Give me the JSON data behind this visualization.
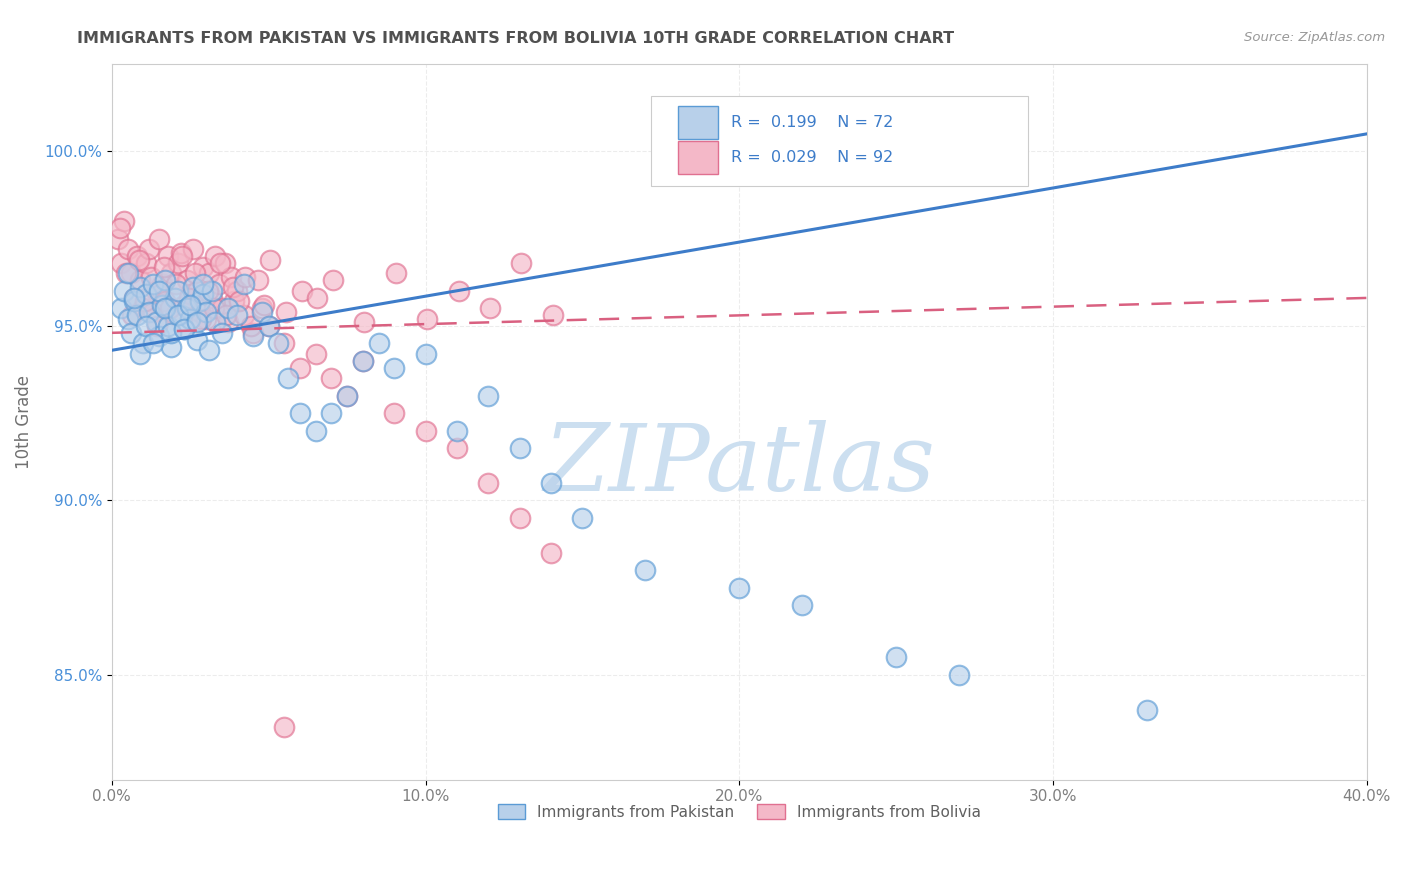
{
  "title": "IMMIGRANTS FROM PAKISTAN VS IMMIGRANTS FROM BOLIVIA 10TH GRADE CORRELATION CHART",
  "source_text": "Source: ZipAtlas.com",
  "ylabel": "10th Grade",
  "xlim": [
    0.0,
    40.0
  ],
  "ylim": [
    82.0,
    102.5
  ],
  "x_tick_labels": [
    "0.0%",
    "10.0%",
    "20.0%",
    "30.0%",
    "40.0%"
  ],
  "x_tick_values": [
    0,
    10,
    20,
    30,
    40
  ],
  "y_tick_labels": [
    "85.0%",
    "90.0%",
    "95.0%",
    "100.0%"
  ],
  "y_tick_values": [
    85,
    90,
    95,
    100
  ],
  "blue_fill_color": "#b8d0ea",
  "blue_edge_color": "#5b9bd5",
  "pink_fill_color": "#f4b8c8",
  "pink_edge_color": "#e07090",
  "blue_line_color": "#3d7cc9",
  "pink_line_color": "#d96080",
  "legend_blue_color": "#b8d0ea",
  "legend_pink_color": "#f4b8c8",
  "watermark": "ZIPatlas",
  "watermark_color": "#ccdff0",
  "bg_color": "#ffffff",
  "grid_color": "#e8e8e8",
  "title_color": "#505050",
  "axis_label_color": "#707070",
  "tick_color_x": "#808080",
  "tick_color_y": "#4a90d9",
  "blue_trend_x0": 0.0,
  "blue_trend_y0": 94.3,
  "blue_trend_x1": 40.0,
  "blue_trend_y1": 100.5,
  "pink_trend_x0": 0.0,
  "pink_trend_y0": 94.8,
  "pink_trend_x1": 40.0,
  "pink_trend_y1": 95.8,
  "blue_scatter_x": [
    0.3,
    0.4,
    0.5,
    0.6,
    0.7,
    0.8,
    0.9,
    1.0,
    1.1,
    1.2,
    1.3,
    1.4,
    1.5,
    1.6,
    1.7,
    1.8,
    1.9,
    2.0,
    2.1,
    2.2,
    2.3,
    2.4,
    2.5,
    2.6,
    2.7,
    2.8,
    2.9,
    3.0,
    3.1,
    3.2,
    3.3,
    3.5,
    3.7,
    4.0,
    4.2,
    4.5,
    4.8,
    5.0,
    5.3,
    5.6,
    6.0,
    6.5,
    7.0,
    7.5,
    8.0,
    8.5,
    9.0,
    10.0,
    11.0,
    12.0,
    13.0,
    14.0,
    15.0,
    17.0,
    20.0,
    22.0,
    25.0,
    27.0,
    33.0,
    0.5,
    0.7,
    0.9,
    1.1,
    1.3,
    1.5,
    1.7,
    1.9,
    2.1,
    2.3,
    2.5,
    2.7,
    2.9
  ],
  "blue_scatter_y": [
    95.5,
    96.0,
    95.2,
    94.8,
    95.7,
    95.3,
    96.1,
    94.5,
    95.9,
    95.4,
    96.2,
    95.1,
    94.7,
    95.6,
    96.3,
    95.0,
    94.4,
    95.8,
    96.0,
    95.3,
    94.9,
    95.5,
    95.2,
    96.1,
    94.6,
    95.7,
    95.9,
    95.4,
    94.3,
    96.0,
    95.1,
    94.8,
    95.5,
    95.3,
    96.2,
    94.7,
    95.4,
    95.0,
    94.5,
    93.5,
    92.5,
    92.0,
    92.5,
    93.0,
    94.0,
    94.5,
    93.8,
    94.2,
    92.0,
    93.0,
    91.5,
    90.5,
    89.5,
    88.0,
    87.5,
    87.0,
    85.5,
    85.0,
    84.0,
    96.5,
    95.8,
    94.2,
    95.0,
    94.5,
    96.0,
    95.5,
    94.8,
    95.3,
    94.9,
    95.6,
    95.1,
    96.2
  ],
  "pink_scatter_x": [
    0.2,
    0.3,
    0.4,
    0.5,
    0.6,
    0.7,
    0.8,
    0.9,
    1.0,
    1.1,
    1.2,
    1.3,
    1.4,
    1.5,
    1.6,
    1.7,
    1.8,
    1.9,
    2.0,
    2.1,
    2.2,
    2.3,
    2.4,
    2.5,
    2.6,
    2.7,
    2.8,
    2.9,
    3.0,
    3.1,
    3.2,
    3.3,
    3.4,
    3.5,
    3.6,
    3.7,
    3.8,
    3.9,
    4.0,
    4.2,
    4.5,
    4.8,
    5.0,
    5.5,
    6.0,
    6.5,
    7.0,
    7.5,
    8.0,
    9.0,
    10.0,
    11.0,
    12.0,
    13.0,
    14.0,
    0.25,
    0.45,
    0.65,
    0.85,
    1.05,
    1.25,
    1.45,
    1.65,
    1.85,
    2.05,
    2.25,
    2.45,
    2.65,
    2.85,
    3.05,
    3.25,
    3.45,
    3.65,
    3.85,
    4.05,
    4.25,
    4.45,
    4.65,
    4.85,
    5.05,
    5.55,
    6.05,
    6.55,
    7.05,
    8.05,
    9.05,
    10.05,
    11.05,
    12.05,
    13.05,
    14.05,
    5.5
  ],
  "pink_scatter_y": [
    97.5,
    96.8,
    98.0,
    97.2,
    96.5,
    95.8,
    97.0,
    96.3,
    95.5,
    96.8,
    97.2,
    95.4,
    96.0,
    97.5,
    96.2,
    95.7,
    97.0,
    96.5,
    95.3,
    96.8,
    97.1,
    95.6,
    96.3,
    95.9,
    97.2,
    96.0,
    95.4,
    96.7,
    95.2,
    96.5,
    95.8,
    97.0,
    96.2,
    95.5,
    96.8,
    95.1,
    96.4,
    95.7,
    96.0,
    95.3,
    94.8,
    95.5,
    95.0,
    94.5,
    93.8,
    94.2,
    93.5,
    93.0,
    94.0,
    92.5,
    92.0,
    91.5,
    90.5,
    89.5,
    88.5,
    97.8,
    96.5,
    95.3,
    96.9,
    95.7,
    96.4,
    95.0,
    96.7,
    95.5,
    96.2,
    97.0,
    95.8,
    96.5,
    95.2,
    96.0,
    95.5,
    96.8,
    95.3,
    96.1,
    95.7,
    96.4,
    95.0,
    96.3,
    95.6,
    96.9,
    95.4,
    96.0,
    95.8,
    96.3,
    95.1,
    96.5,
    95.2,
    96.0,
    95.5,
    96.8,
    95.3,
    83.5
  ]
}
